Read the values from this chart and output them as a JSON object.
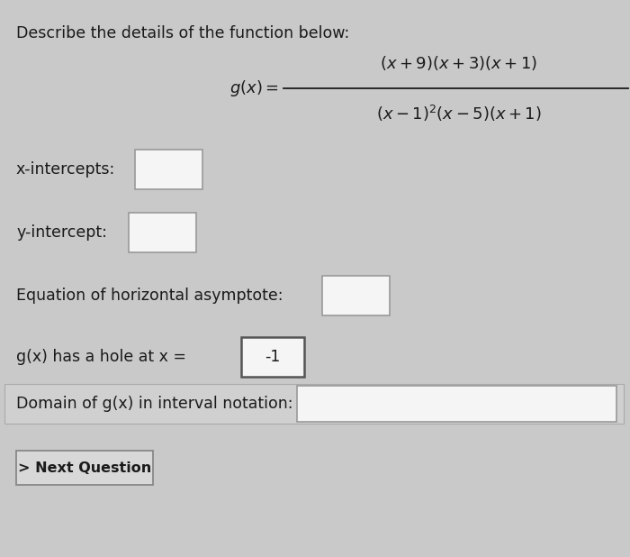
{
  "title": "Describe the details of the function below:",
  "hole_value": "-1",
  "label_x_intercepts": "x-intercepts:",
  "label_y_intercept": "y-intercept:",
  "label_asymptote": "Equation of horizontal asymptote:",
  "label_hole": "g(x) has a hole at x =",
  "label_domain": "Domain of g(x) in interval notation:",
  "button_text": "> Next Question",
  "bg_color": "#c9c9c9",
  "box_color": "#f5f5f5",
  "box_border": "#999999",
  "text_color": "#1a1a1a",
  "button_bg": "#d8d8d8",
  "button_border": "#888888",
  "font_size": 12.5,
  "formula_font_size": 13.0
}
